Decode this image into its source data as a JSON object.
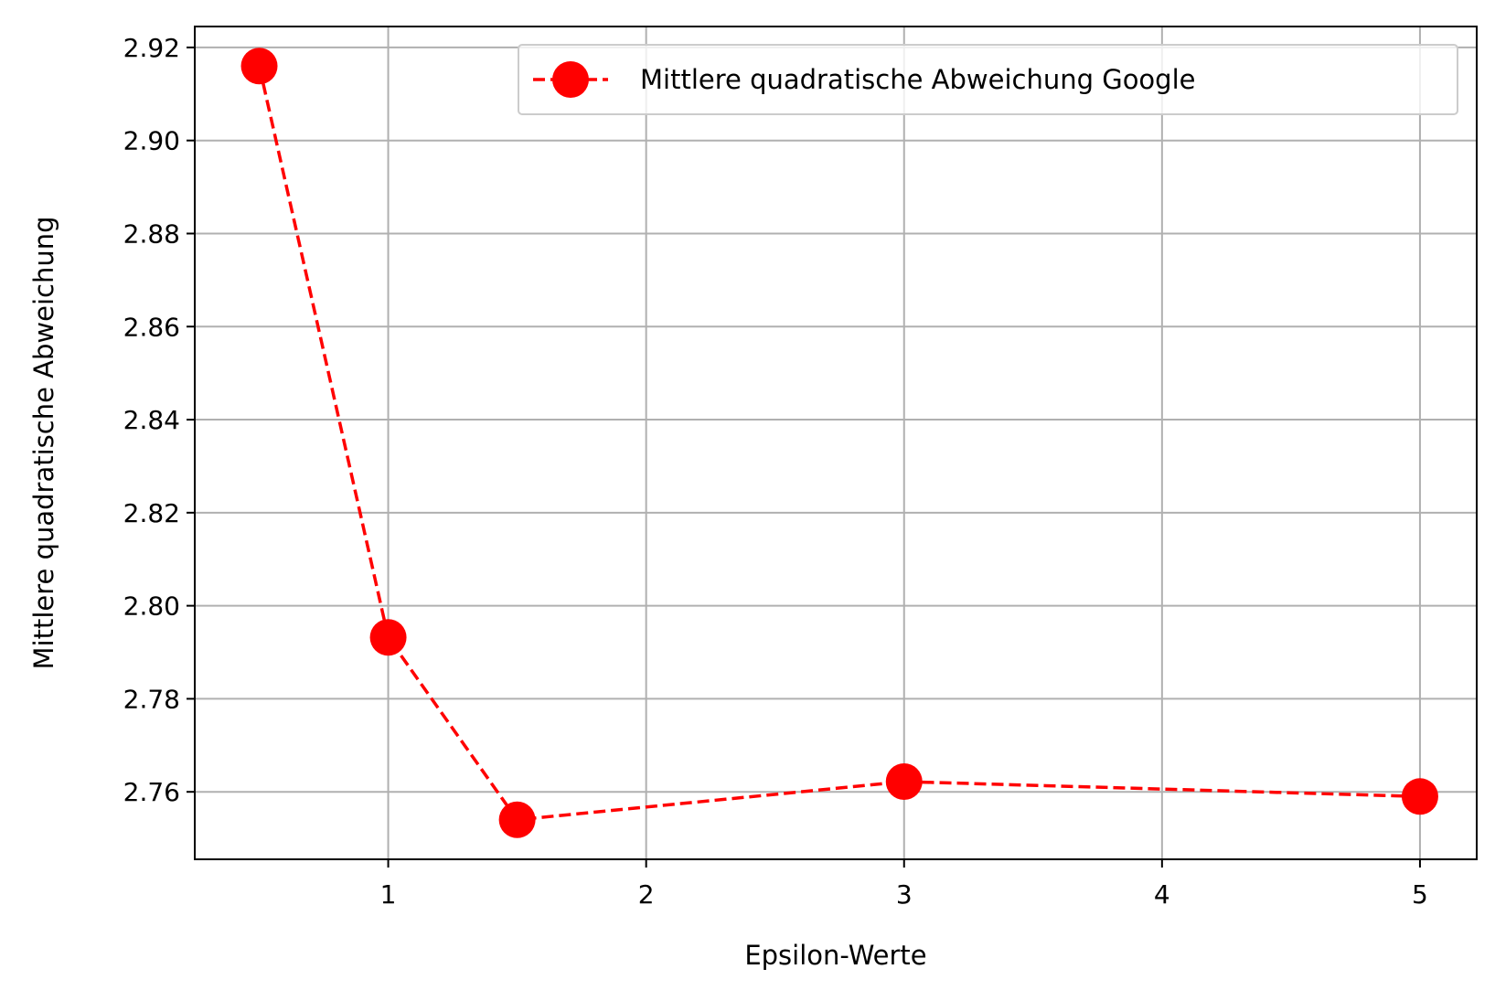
{
  "chart_data": {
    "type": "line",
    "title": "",
    "xlabel": "Epsilon-Werte",
    "ylabel": "Mittlere quadratische Abweichung",
    "xlim": [
      0.25,
      5.22
    ],
    "ylim": [
      2.7455,
      2.9245
    ],
    "xticks": [
      1,
      2,
      3,
      4,
      5
    ],
    "xtick_labels": [
      "1",
      "2",
      "3",
      "4",
      "5"
    ],
    "yticks": [
      2.76,
      2.78,
      2.8,
      2.82,
      2.84,
      2.86,
      2.88,
      2.9,
      2.92
    ],
    "ytick_labels": [
      "2.76",
      "2.78",
      "2.80",
      "2.82",
      "2.84",
      "2.86",
      "2.88",
      "2.90",
      "2.92"
    ],
    "grid": true,
    "legend_position": "top-right",
    "series": [
      {
        "name": "Mittlere quadratische Abweichung Google",
        "color": "#ff0000",
        "line_style": "dashed",
        "marker": "circle",
        "x": [
          0.5,
          1.0,
          1.5,
          3.0,
          5.0
        ],
        "y": [
          2.916,
          2.7932,
          2.754,
          2.7622,
          2.759
        ]
      }
    ]
  }
}
